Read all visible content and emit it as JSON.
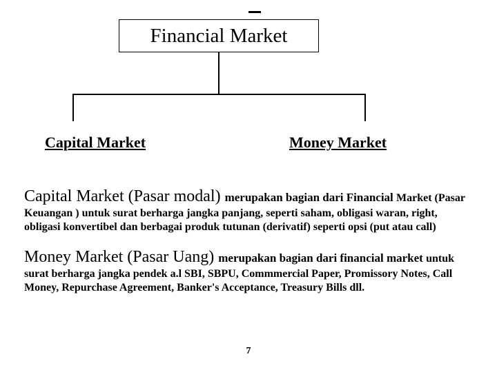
{
  "diagram": {
    "type": "tree",
    "root_label": "Financial Market",
    "children": [
      {
        "label": "Capital Market"
      },
      {
        "label": "Money Market"
      }
    ],
    "line_color": "#000000",
    "box_border_color": "#000000",
    "box_background": "#ffffff",
    "root_fontsize": 29,
    "child_fontsize": 22,
    "child_underline": true,
    "child_bold": true
  },
  "paragraphs": {
    "p1": {
      "title": "Capital Market (Pasar modal) ",
      "lead": "merupakan bagian dari Financial ",
      "body": "Market (Pasar Keuangan ) untuk surat berharga jangka panjang, seperti saham, obligasi waran, right, obligasi konvertibel dan berbagai produk tutunan (derivatif) seperti opsi (put atau call)"
    },
    "p2": {
      "title": "Money Market (Pasar Uang) ",
      "lead": "merupakan bagian dari financial market ",
      "body": "untuk surat berharga jangka pendek a.l SBI, SBPU, Commmercial Paper, Promissory Notes, Call Money, Repurchase Agreement, Banker's Acceptance, Treasury Bills dll."
    }
  },
  "page_number": "7",
  "colors": {
    "background": "#ffffff",
    "text": "#000000"
  }
}
